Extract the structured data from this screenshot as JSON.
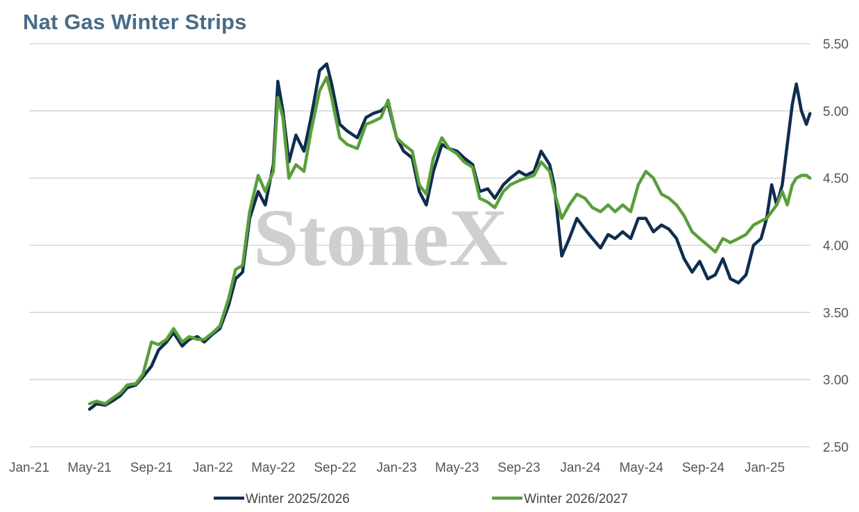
{
  "title": "Nat Gas Winter Strips",
  "watermark": "StoneX",
  "chart_data": {
    "type": "line",
    "title": "Nat Gas Winter Strips",
    "xlabel": "",
    "ylabel": "",
    "y_axis_side": "right",
    "ylim": [
      2.5,
      5.5
    ],
    "xlim": [
      "2021-01",
      "2025-05"
    ],
    "grid": "horizontal",
    "legend_position": "bottom",
    "x_ticks": [
      "Jan-21",
      "May-21",
      "Sep-21",
      "Jan-22",
      "May-22",
      "Sep-22",
      "Jan-23",
      "May-23",
      "Sep-23",
      "Jan-24",
      "May-24",
      "Sep-24",
      "Jan-25"
    ],
    "y_ticks": [
      "5.50",
      "5.00",
      "4.50",
      "4.00",
      "3.50",
      "3.00",
      "2.50"
    ],
    "series": [
      {
        "name": "Winter 2025/2026",
        "color": "#0f2d4f",
        "points": [
          [
            "2021-05-01",
            2.78
          ],
          [
            "2021-05-15",
            2.82
          ],
          [
            "2021-06-01",
            2.81
          ],
          [
            "2021-06-15",
            2.84
          ],
          [
            "2021-07-01",
            2.88
          ],
          [
            "2021-07-15",
            2.94
          ],
          [
            "2021-08-01",
            2.96
          ],
          [
            "2021-08-15",
            3.02
          ],
          [
            "2021-09-01",
            3.1
          ],
          [
            "2021-09-15",
            3.22
          ],
          [
            "2021-10-01",
            3.28
          ],
          [
            "2021-10-15",
            3.35
          ],
          [
            "2021-11-01",
            3.25
          ],
          [
            "2021-11-15",
            3.3
          ],
          [
            "2021-12-01",
            3.32
          ],
          [
            "2021-12-15",
            3.28
          ],
          [
            "2022-01-01",
            3.34
          ],
          [
            "2022-01-15",
            3.38
          ],
          [
            "2022-02-01",
            3.55
          ],
          [
            "2022-02-15",
            3.75
          ],
          [
            "2022-03-01",
            3.8
          ],
          [
            "2022-03-15",
            4.2
          ],
          [
            "2022-04-01",
            4.4
          ],
          [
            "2022-04-15",
            4.3
          ],
          [
            "2022-05-01",
            4.6
          ],
          [
            "2022-05-10",
            5.22
          ],
          [
            "2022-05-20",
            5.0
          ],
          [
            "2022-06-01",
            4.62
          ],
          [
            "2022-06-15",
            4.82
          ],
          [
            "2022-07-01",
            4.7
          ],
          [
            "2022-07-15",
            4.95
          ],
          [
            "2022-08-01",
            5.3
          ],
          [
            "2022-08-15",
            5.35
          ],
          [
            "2022-08-25",
            5.2
          ],
          [
            "2022-09-10",
            4.9
          ],
          [
            "2022-09-25",
            4.85
          ],
          [
            "2022-10-15",
            4.8
          ],
          [
            "2022-11-01",
            4.95
          ],
          [
            "2022-11-15",
            4.98
          ],
          [
            "2022-12-01",
            5.0
          ],
          [
            "2022-12-15",
            5.05
          ],
          [
            "2023-01-01",
            4.8
          ],
          [
            "2023-01-15",
            4.7
          ],
          [
            "2023-02-01",
            4.65
          ],
          [
            "2023-02-15",
            4.4
          ],
          [
            "2023-03-01",
            4.3
          ],
          [
            "2023-03-15",
            4.55
          ],
          [
            "2023-04-01",
            4.75
          ],
          [
            "2023-04-15",
            4.72
          ],
          [
            "2023-05-01",
            4.7
          ],
          [
            "2023-05-15",
            4.65
          ],
          [
            "2023-06-01",
            4.6
          ],
          [
            "2023-06-15",
            4.4
          ],
          [
            "2023-07-01",
            4.42
          ],
          [
            "2023-07-15",
            4.35
          ],
          [
            "2023-08-01",
            4.45
          ],
          [
            "2023-08-15",
            4.5
          ],
          [
            "2023-09-01",
            4.55
          ],
          [
            "2023-09-15",
            4.52
          ],
          [
            "2023-10-01",
            4.55
          ],
          [
            "2023-10-15",
            4.7
          ],
          [
            "2023-11-01",
            4.6
          ],
          [
            "2023-11-10",
            4.45
          ],
          [
            "2023-11-25",
            3.92
          ],
          [
            "2023-12-10",
            4.05
          ],
          [
            "2023-12-25",
            4.2
          ],
          [
            "2024-01-10",
            4.12
          ],
          [
            "2024-01-25",
            4.05
          ],
          [
            "2024-02-10",
            3.98
          ],
          [
            "2024-02-25",
            4.08
          ],
          [
            "2024-03-10",
            4.05
          ],
          [
            "2024-03-25",
            4.1
          ],
          [
            "2024-04-10",
            4.05
          ],
          [
            "2024-04-25",
            4.2
          ],
          [
            "2024-05-10",
            4.2
          ],
          [
            "2024-05-25",
            4.1
          ],
          [
            "2024-06-10",
            4.15
          ],
          [
            "2024-06-25",
            4.12
          ],
          [
            "2024-07-10",
            4.05
          ],
          [
            "2024-07-25",
            3.9
          ],
          [
            "2024-08-10",
            3.8
          ],
          [
            "2024-08-25",
            3.88
          ],
          [
            "2024-09-10",
            3.75
          ],
          [
            "2024-09-25",
            3.78
          ],
          [
            "2024-10-10",
            3.9
          ],
          [
            "2024-10-25",
            3.75
          ],
          [
            "2024-11-10",
            3.72
          ],
          [
            "2024-11-25",
            3.78
          ],
          [
            "2024-12-10",
            4.0
          ],
          [
            "2024-12-25",
            4.05
          ],
          [
            "2025-01-05",
            4.2
          ],
          [
            "2025-01-15",
            4.45
          ],
          [
            "2025-01-25",
            4.3
          ],
          [
            "2025-02-05",
            4.45
          ],
          [
            "2025-02-15",
            4.75
          ],
          [
            "2025-02-25",
            5.05
          ],
          [
            "2025-03-05",
            5.2
          ],
          [
            "2025-03-15",
            5.0
          ],
          [
            "2025-03-25",
            4.9
          ],
          [
            "2025-04-01",
            4.98
          ]
        ]
      },
      {
        "name": "Winter 2026/2027",
        "color": "#5a9e3a",
        "points": [
          [
            "2021-05-01",
            2.82
          ],
          [
            "2021-05-15",
            2.84
          ],
          [
            "2021-06-01",
            2.82
          ],
          [
            "2021-06-15",
            2.86
          ],
          [
            "2021-07-01",
            2.9
          ],
          [
            "2021-07-15",
            2.96
          ],
          [
            "2021-08-01",
            2.97
          ],
          [
            "2021-08-15",
            3.04
          ],
          [
            "2021-09-01",
            3.28
          ],
          [
            "2021-09-15",
            3.26
          ],
          [
            "2021-10-01",
            3.3
          ],
          [
            "2021-10-15",
            3.38
          ],
          [
            "2021-11-01",
            3.28
          ],
          [
            "2021-11-15",
            3.32
          ],
          [
            "2021-12-01",
            3.3
          ],
          [
            "2021-12-15",
            3.3
          ],
          [
            "2022-01-01",
            3.35
          ],
          [
            "2022-01-15",
            3.4
          ],
          [
            "2022-02-01",
            3.6
          ],
          [
            "2022-02-15",
            3.82
          ],
          [
            "2022-03-01",
            3.85
          ],
          [
            "2022-03-15",
            4.25
          ],
          [
            "2022-04-01",
            4.52
          ],
          [
            "2022-04-15",
            4.4
          ],
          [
            "2022-05-01",
            4.55
          ],
          [
            "2022-05-10",
            5.1
          ],
          [
            "2022-05-20",
            4.95
          ],
          [
            "2022-06-01",
            4.5
          ],
          [
            "2022-06-15",
            4.6
          ],
          [
            "2022-07-01",
            4.55
          ],
          [
            "2022-07-15",
            4.85
          ],
          [
            "2022-08-01",
            5.15
          ],
          [
            "2022-08-15",
            5.25
          ],
          [
            "2022-08-25",
            5.1
          ],
          [
            "2022-09-10",
            4.8
          ],
          [
            "2022-09-25",
            4.75
          ],
          [
            "2022-10-15",
            4.72
          ],
          [
            "2022-11-01",
            4.9
          ],
          [
            "2022-11-15",
            4.92
          ],
          [
            "2022-12-01",
            4.95
          ],
          [
            "2022-12-15",
            5.08
          ],
          [
            "2023-01-01",
            4.8
          ],
          [
            "2023-01-15",
            4.75
          ],
          [
            "2023-02-01",
            4.7
          ],
          [
            "2023-02-15",
            4.45
          ],
          [
            "2023-03-01",
            4.38
          ],
          [
            "2023-03-15",
            4.65
          ],
          [
            "2023-04-01",
            4.8
          ],
          [
            "2023-04-15",
            4.72
          ],
          [
            "2023-05-01",
            4.68
          ],
          [
            "2023-05-15",
            4.62
          ],
          [
            "2023-06-01",
            4.58
          ],
          [
            "2023-06-15",
            4.35
          ],
          [
            "2023-07-01",
            4.32
          ],
          [
            "2023-07-15",
            4.28
          ],
          [
            "2023-08-01",
            4.4
          ],
          [
            "2023-08-15",
            4.45
          ],
          [
            "2023-09-01",
            4.48
          ],
          [
            "2023-09-15",
            4.5
          ],
          [
            "2023-10-01",
            4.52
          ],
          [
            "2023-10-15",
            4.62
          ],
          [
            "2023-11-01",
            4.55
          ],
          [
            "2023-11-10",
            4.4
          ],
          [
            "2023-11-25",
            4.2
          ],
          [
            "2023-12-10",
            4.3
          ],
          [
            "2023-12-25",
            4.38
          ],
          [
            "2024-01-10",
            4.35
          ],
          [
            "2024-01-25",
            4.28
          ],
          [
            "2024-02-10",
            4.25
          ],
          [
            "2024-02-25",
            4.3
          ],
          [
            "2024-03-10",
            4.25
          ],
          [
            "2024-03-25",
            4.3
          ],
          [
            "2024-04-10",
            4.25
          ],
          [
            "2024-04-25",
            4.45
          ],
          [
            "2024-05-10",
            4.55
          ],
          [
            "2024-05-25",
            4.5
          ],
          [
            "2024-06-10",
            4.38
          ],
          [
            "2024-06-25",
            4.35
          ],
          [
            "2024-07-10",
            4.3
          ],
          [
            "2024-07-25",
            4.22
          ],
          [
            "2024-08-10",
            4.1
          ],
          [
            "2024-08-25",
            4.05
          ],
          [
            "2024-09-10",
            4.0
          ],
          [
            "2024-09-25",
            3.95
          ],
          [
            "2024-10-10",
            4.05
          ],
          [
            "2024-10-25",
            4.02
          ],
          [
            "2024-11-10",
            4.05
          ],
          [
            "2024-11-25",
            4.08
          ],
          [
            "2024-12-10",
            4.15
          ],
          [
            "2024-12-25",
            4.18
          ],
          [
            "2025-01-05",
            4.2
          ],
          [
            "2025-01-15",
            4.25
          ],
          [
            "2025-01-25",
            4.3
          ],
          [
            "2025-02-05",
            4.4
          ],
          [
            "2025-02-15",
            4.3
          ],
          [
            "2025-02-25",
            4.45
          ],
          [
            "2025-03-05",
            4.5
          ],
          [
            "2025-03-15",
            4.52
          ],
          [
            "2025-03-25",
            4.52
          ],
          [
            "2025-04-01",
            4.5
          ]
        ]
      }
    ]
  }
}
